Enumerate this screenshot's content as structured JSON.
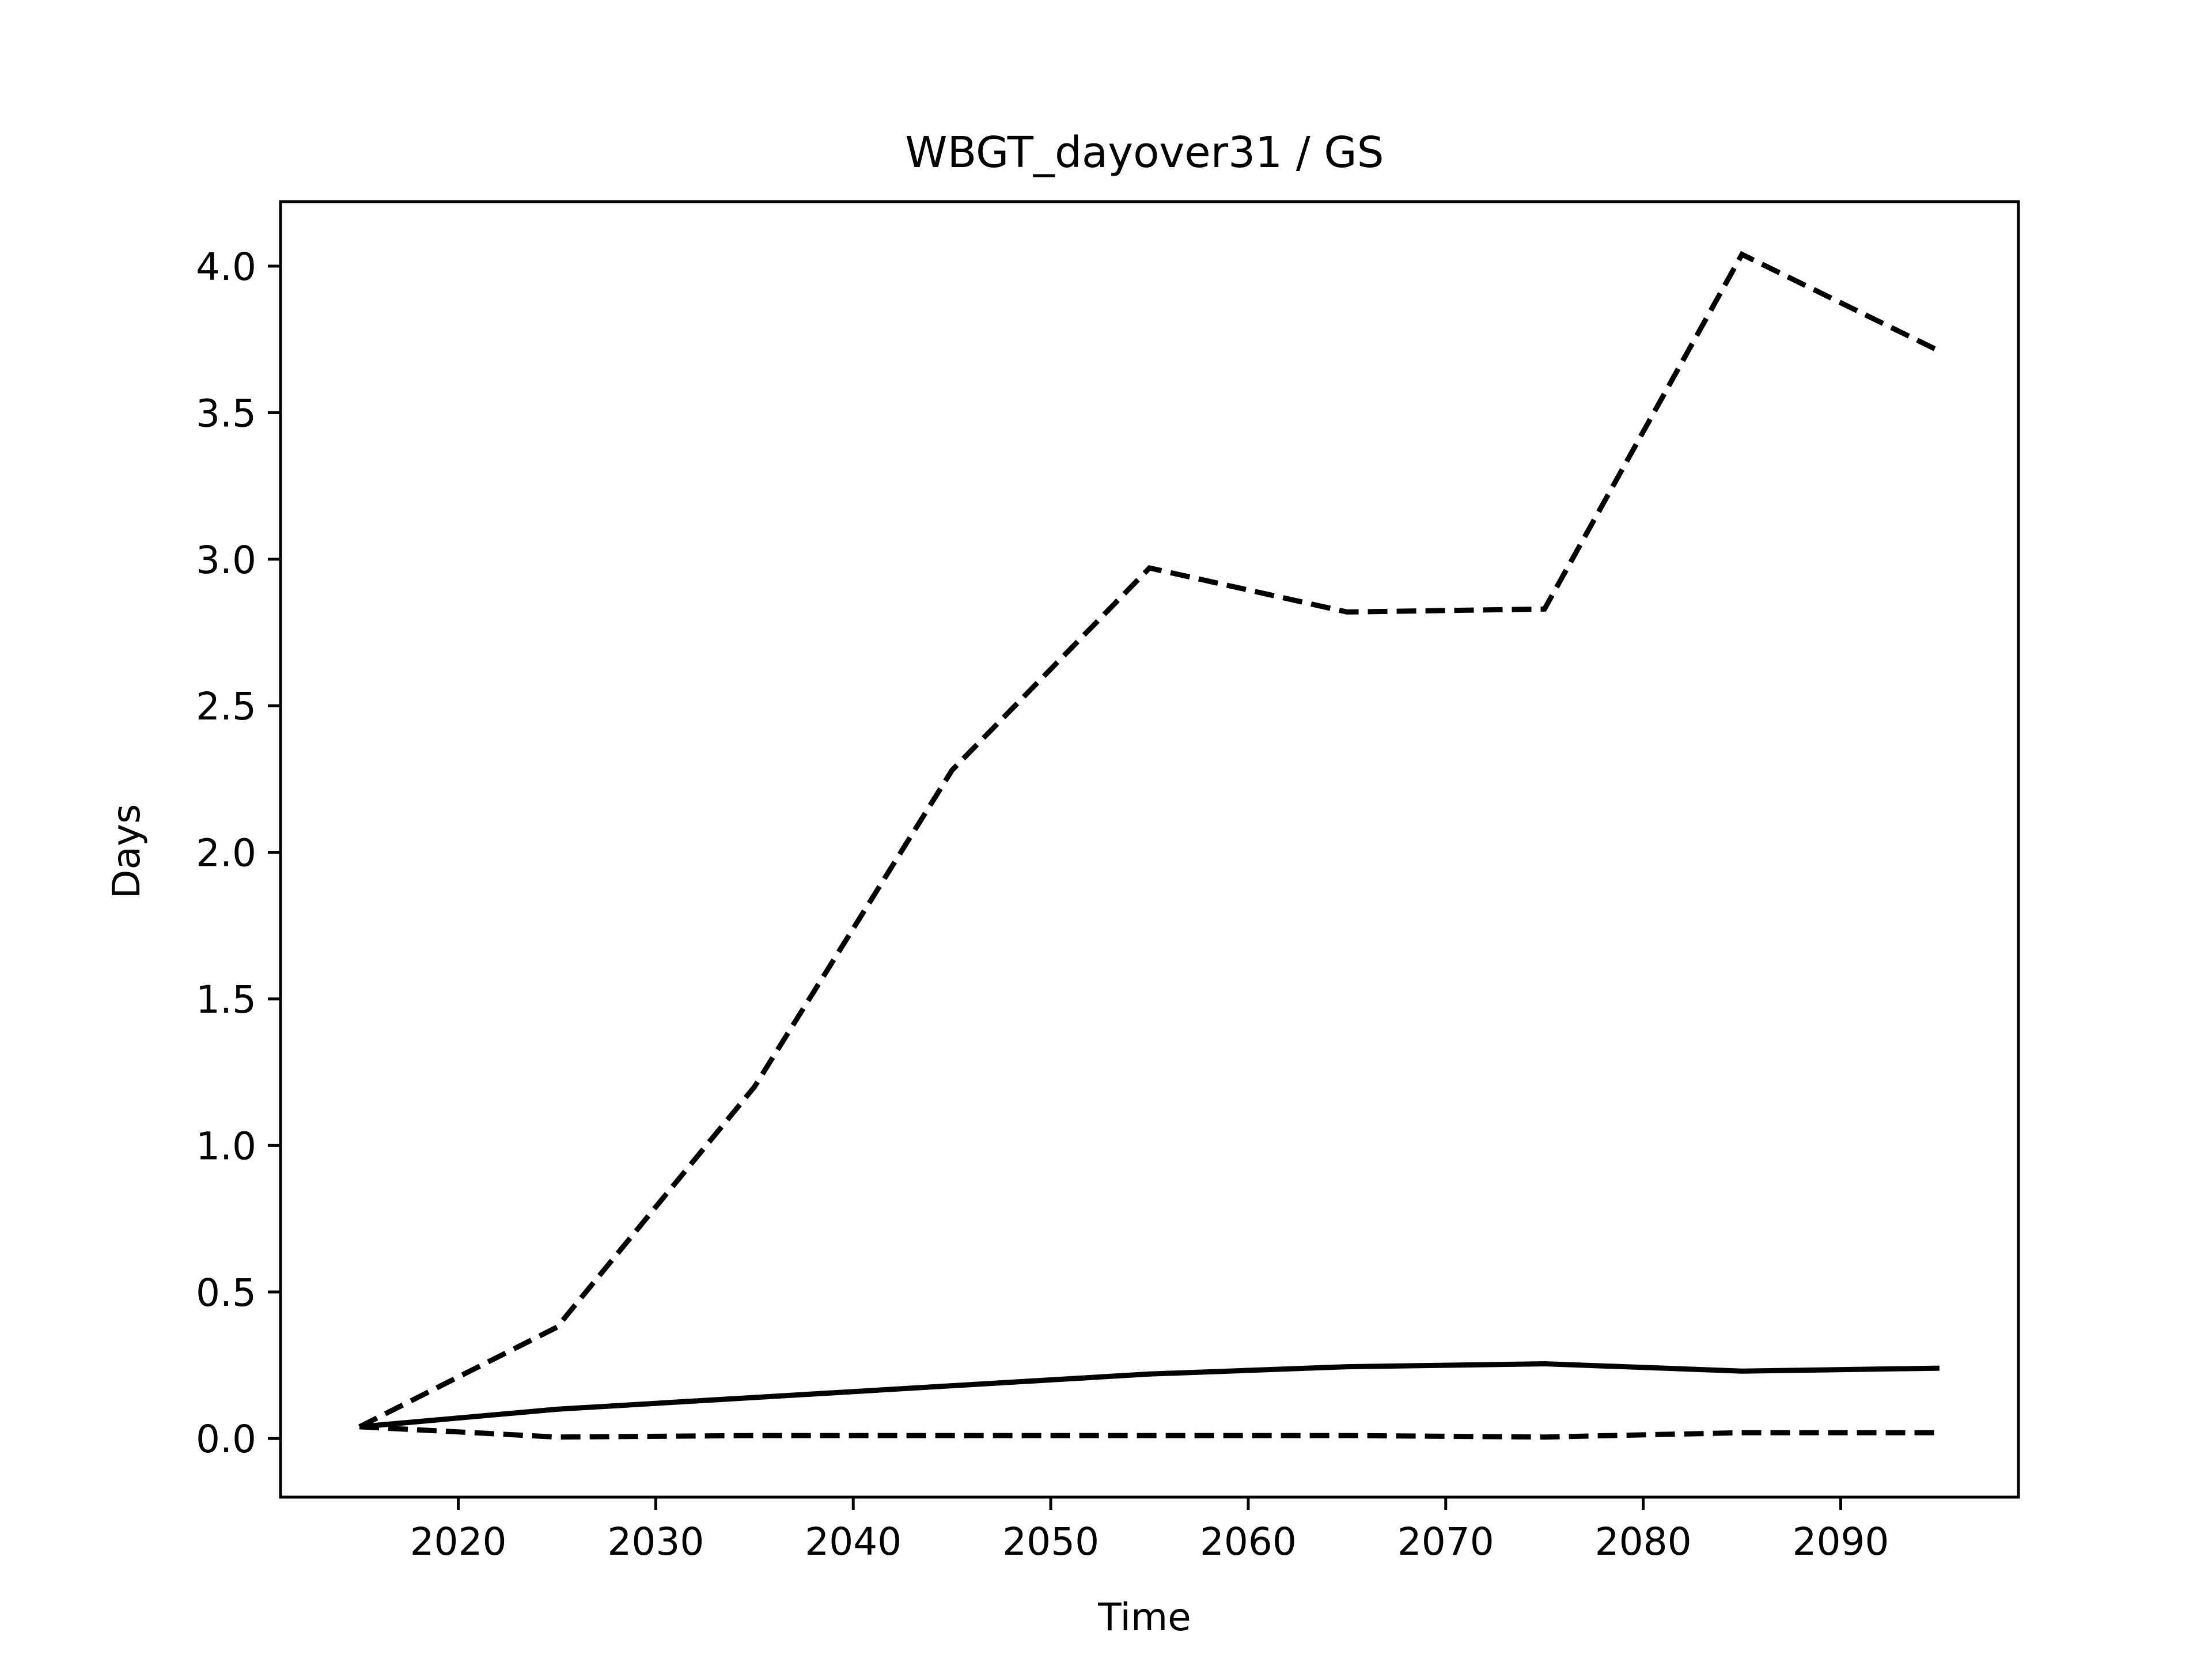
{
  "chart_data": {
    "type": "line",
    "title": "WBGT_dayover31 / GS",
    "xlabel": "Time",
    "ylabel": "Days",
    "xlim": [
      2011,
      2099
    ],
    "ylim": [
      -0.2,
      4.22
    ],
    "xticks": [
      2020,
      2030,
      2040,
      2050,
      2060,
      2070,
      2080,
      2090
    ],
    "yticks": [
      "0.0",
      "0.5",
      "1.0",
      "1.5",
      "2.0",
      "2.5",
      "3.0",
      "3.5",
      "4.0"
    ],
    "grid": false,
    "x": [
      2015,
      2025,
      2035,
      2045,
      2055,
      2065,
      2075,
      2085,
      2095
    ],
    "series": [
      {
        "values": [
          0.04,
          0.38,
          1.2,
          2.28,
          2.97,
          2.82,
          2.83,
          4.04,
          3.71
        ],
        "color": "#000000",
        "style": "dashed"
      },
      {
        "values": [
          0.04,
          0.1,
          0.14,
          0.18,
          0.22,
          0.245,
          0.255,
          0.23,
          0.24
        ],
        "color": "#000000",
        "style": "solid"
      },
      {
        "values": [
          0.04,
          0.005,
          0.01,
          0.01,
          0.01,
          0.01,
          0.005,
          0.02,
          0.02
        ],
        "color": "#000000",
        "style": "dashed"
      }
    ]
  }
}
